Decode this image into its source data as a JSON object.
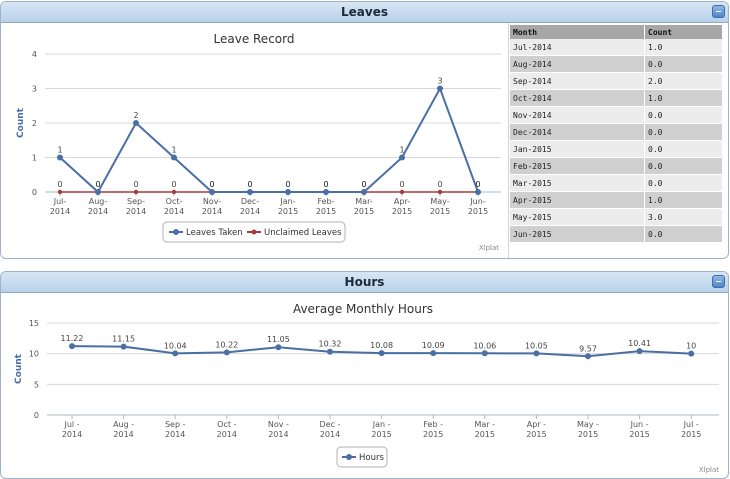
{
  "leaves_panel": {
    "title": "Leaves",
    "credit": "Xlplat",
    "table": {
      "headers": [
        "Month",
        "Count"
      ],
      "rows": [
        [
          "Jul-2014",
          "1.0"
        ],
        [
          "Aug-2014",
          "0.0"
        ],
        [
          "Sep-2014",
          "2.0"
        ],
        [
          "Oct-2014",
          "1.0"
        ],
        [
          "Nov-2014",
          "0.0"
        ],
        [
          "Dec-2014",
          "0.0"
        ],
        [
          "Jan-2015",
          "0.0"
        ],
        [
          "Feb-2015",
          "0.0"
        ],
        [
          "Mar-2015",
          "0.0"
        ],
        [
          "Apr-2015",
          "1.0"
        ],
        [
          "May-2015",
          "3.0"
        ],
        [
          "Jun-2015",
          "0.0"
        ]
      ]
    }
  },
  "hours_panel": {
    "title": "Hours",
    "credit": "Xlplat"
  },
  "colors": {
    "series_blue": "#4a6fa5",
    "series_red": "#a83a3a",
    "header_bg": "#c6dbf0",
    "grid": "#d8d8d8"
  },
  "chart_data": [
    {
      "type": "line",
      "title": "Leave Record",
      "ylabel": "Count",
      "xlabel": "",
      "categories": [
        "Jul-2014",
        "Aug-2014",
        "Sep-2014",
        "Oct-2014",
        "Nov-2014",
        "Dec-2014",
        "Jan-2015",
        "Feb-2015",
        "Mar-2015",
        "Apr-2015",
        "May-2015",
        "Jun-2015"
      ],
      "tick_labels": [
        [
          "Jul-",
          "2014"
        ],
        [
          "Aug-",
          "2014"
        ],
        [
          "Sep-",
          "2014"
        ],
        [
          "Oct-",
          "2014"
        ],
        [
          "Nov-",
          "2014"
        ],
        [
          "Dec-",
          "2014"
        ],
        [
          "Jan-",
          "2015"
        ],
        [
          "Feb-",
          "2015"
        ],
        [
          "Mar-",
          "2015"
        ],
        [
          "Apr-",
          "2015"
        ],
        [
          "May-",
          "2015"
        ],
        [
          "Jun-",
          "2015"
        ]
      ],
      "yticks": [
        "0",
        "1",
        "2",
        "3",
        "4"
      ],
      "ylim": [
        0,
        4
      ],
      "grid": true,
      "legend_position": "bottom",
      "series": [
        {
          "name": "Leaves Taken",
          "values": [
            1,
            0,
            2,
            1,
            0,
            0,
            0,
            0,
            0,
            1,
            3,
            0
          ],
          "labels": [
            "1",
            "0",
            "2",
            "1",
            "0",
            "0",
            "0",
            "0",
            "0",
            "1",
            "3",
            "0"
          ]
        },
        {
          "name": "Unclaimed Leaves",
          "values": [
            0,
            0,
            0,
            0,
            0,
            0,
            0,
            0,
            0,
            0,
            0,
            0
          ],
          "labels": [
            "0",
            "0",
            "0",
            "0",
            "0",
            "0",
            "0",
            "0",
            "0",
            "0",
            "0",
            "0"
          ]
        }
      ]
    },
    {
      "type": "line",
      "title": "Average Monthly Hours",
      "ylabel": "Count",
      "xlabel": "",
      "categories": [
        "Jul-2014",
        "Aug-2014",
        "Sep-2014",
        "Oct-2014",
        "Nov-2014",
        "Dec-2014",
        "Jan-2015",
        "Feb-2015",
        "Mar-2015",
        "Apr-2015",
        "May-2015",
        "Jun-2015",
        "Jul-2015"
      ],
      "tick_labels": [
        [
          "Jul -",
          "2014"
        ],
        [
          "Aug -",
          "2014"
        ],
        [
          "Sep -",
          "2014"
        ],
        [
          "Oct -",
          "2014"
        ],
        [
          "Nov -",
          "2014"
        ],
        [
          "Dec -",
          "2014"
        ],
        [
          "Jan -",
          "2015"
        ],
        [
          "Feb -",
          "2015"
        ],
        [
          "Mar -",
          "2015"
        ],
        [
          "Apr -",
          "2015"
        ],
        [
          "May -",
          "2015"
        ],
        [
          "Jun -",
          "2015"
        ],
        [
          "Jul -",
          "2015"
        ]
      ],
      "yticks": [
        "0",
        "5",
        "10",
        "15"
      ],
      "ylim": [
        0,
        15
      ],
      "grid": true,
      "legend_position": "bottom",
      "series": [
        {
          "name": "Hours",
          "values": [
            11.22,
            11.15,
            10.04,
            10.22,
            11.05,
            10.32,
            10.08,
            10.09,
            10.06,
            10.05,
            9.57,
            10.41,
            10
          ],
          "labels": [
            "11.22",
            "11.15",
            "10.04",
            "10.22",
            "11.05",
            "10.32",
            "10.08",
            "10.09",
            "10.06",
            "10.05",
            "9.57",
            "10.41",
            "10"
          ]
        }
      ]
    }
  ]
}
